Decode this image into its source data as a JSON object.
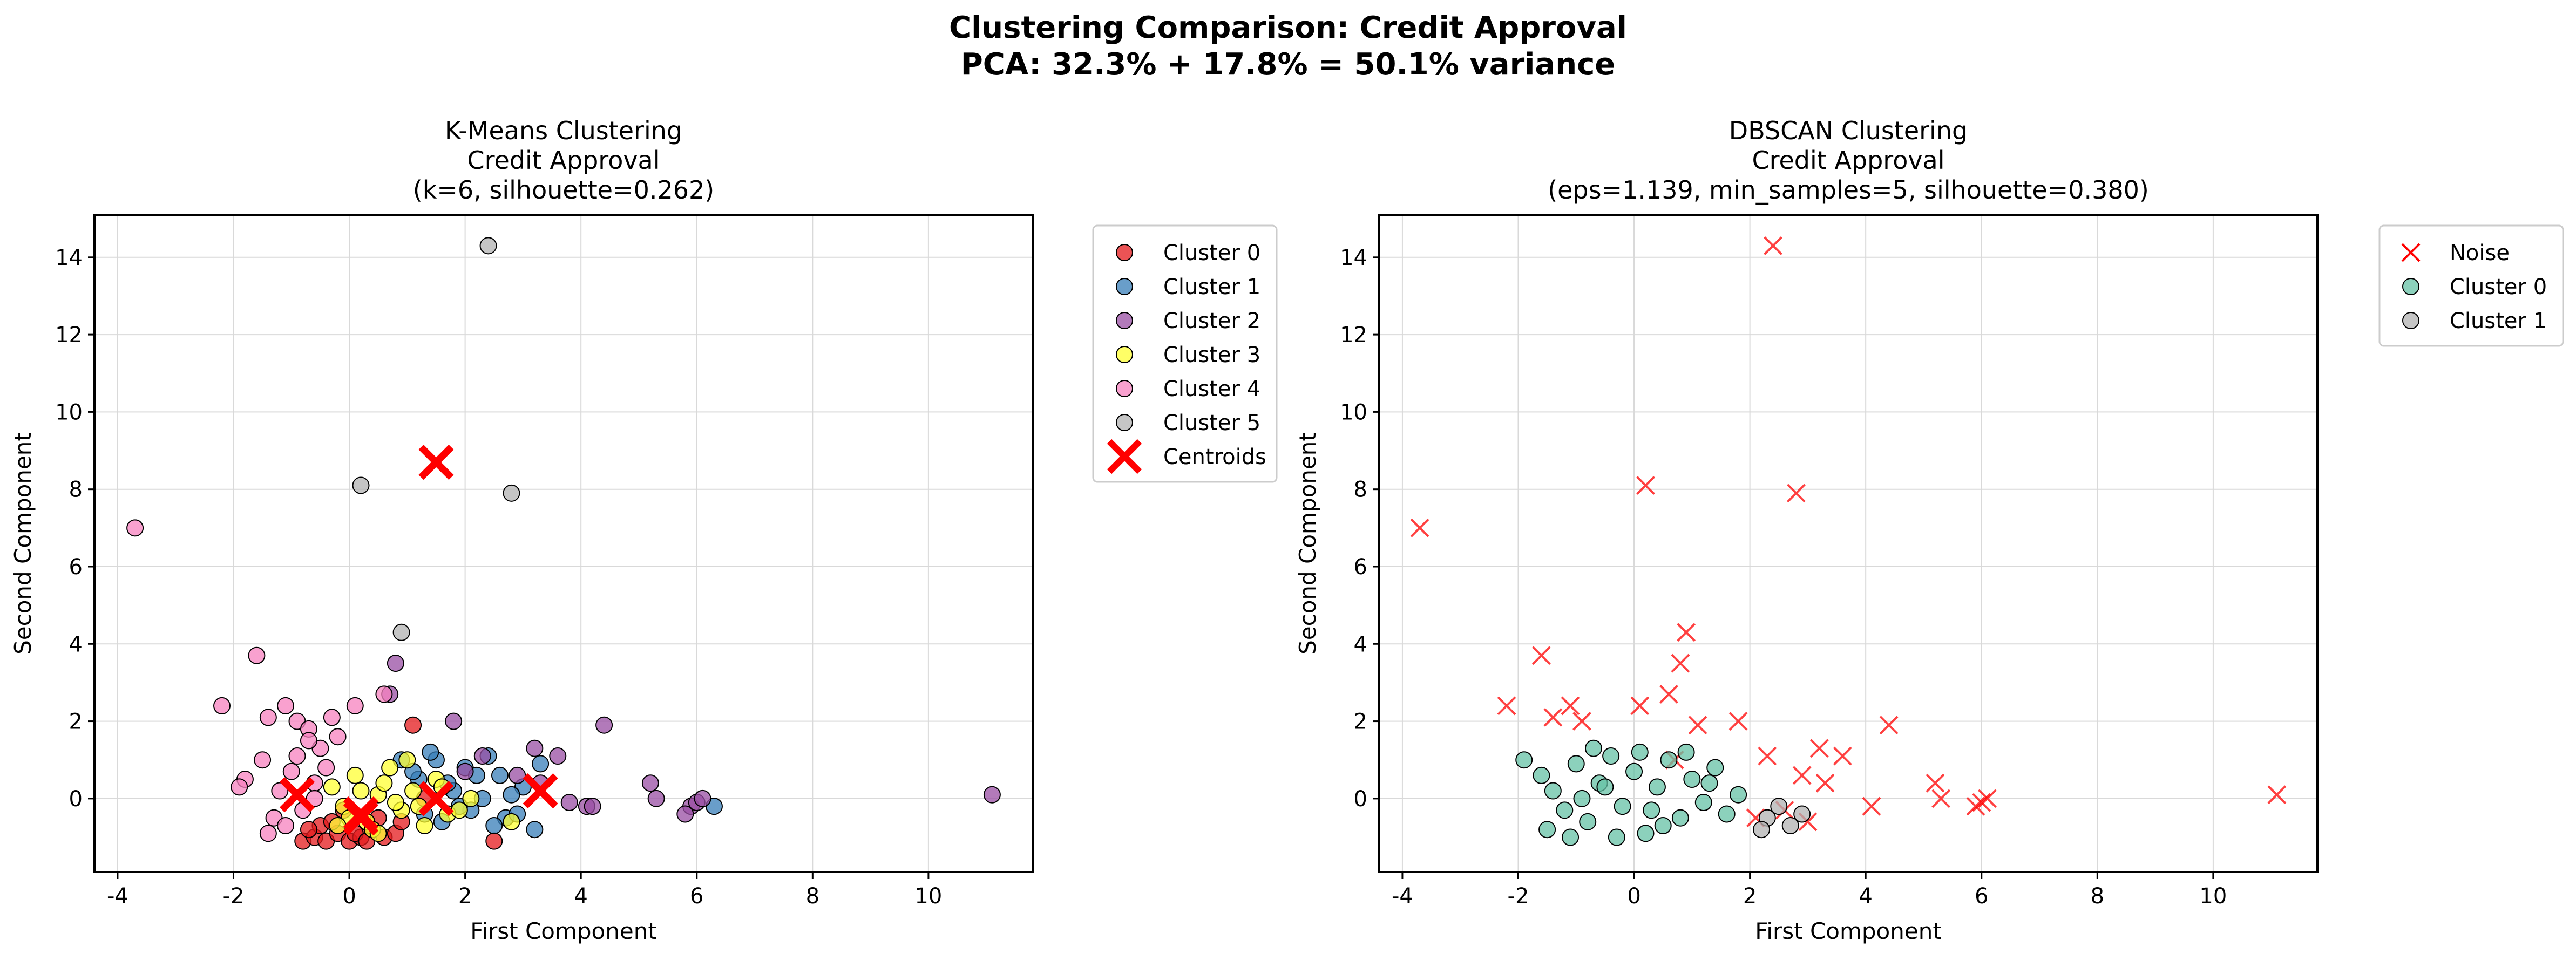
{
  "figure": {
    "title_line1": "Clustering Comparison: Credit Approval",
    "title_line2": "PCA: 32.3% + 17.8% = 50.1% variance"
  },
  "chart_data": [
    {
      "type": "scatter",
      "title": [
        "K-Means Clustering",
        "Credit Approval",
        "(k=6, silhouette=0.262)"
      ],
      "xlabel": "First Component",
      "ylabel": "Second Component",
      "xlim": [
        -4.4,
        11.8
      ],
      "ylim": [
        -1.9,
        15.1
      ],
      "xticks": [
        -4,
        -2,
        0,
        2,
        4,
        6,
        8,
        10
      ],
      "yticks": [
        0,
        2,
        4,
        6,
        8,
        10,
        12,
        14
      ],
      "grid": true,
      "legend_position": "outside-right",
      "series": [
        {
          "name": "Cluster 0",
          "marker": "circle",
          "color": "#e41a1c",
          "x": [
            -0.8,
            -0.6,
            -0.4,
            -0.2,
            0.0,
            0.2,
            0.4,
            -0.5,
            -0.3,
            0.1,
            0.3,
            0.6,
            -0.7,
            0.8,
            1.1,
            1.3,
            2.5,
            0.5,
            -0.1,
            0.9
          ],
          "y": [
            -1.1,
            -1.0,
            -1.1,
            -0.9,
            -1.1,
            -1.0,
            -0.8,
            -0.7,
            -0.6,
            -0.9,
            -1.1,
            -1.0,
            -0.8,
            -0.9,
            1.9,
            0.0,
            -1.1,
            -0.5,
            -0.3,
            -0.6
          ]
        },
        {
          "name": "Cluster 1",
          "marker": "circle",
          "color": "#377eb8",
          "x": [
            1.2,
            1.5,
            1.8,
            2.1,
            2.4,
            2.7,
            3.0,
            3.2,
            1.6,
            2.0,
            2.3,
            2.6,
            1.4,
            1.9,
            2.9,
            3.3,
            6.3,
            1.3,
            1.7,
            2.2,
            2.5,
            2.8,
            0.9,
            1.1
          ],
          "y": [
            0.5,
            1.0,
            0.2,
            -0.3,
            1.1,
            -0.5,
            0.3,
            -0.8,
            -0.6,
            0.8,
            0.0,
            0.6,
            1.2,
            -0.2,
            -0.4,
            0.9,
            -0.2,
            -0.4,
            0.4,
            0.6,
            -0.7,
            0.1,
            1.0,
            0.7
          ]
        },
        {
          "name": "Cluster 2",
          "marker": "circle",
          "color": "#984ea3",
          "x": [
            0.8,
            1.8,
            2.3,
            3.2,
            3.6,
            4.1,
            4.4,
            5.2,
            5.3,
            5.9,
            6.0,
            6.1,
            11.1,
            2.9,
            3.3,
            0.7,
            2.0,
            3.8,
            4.2,
            5.8
          ],
          "y": [
            3.5,
            2.0,
            1.1,
            1.3,
            1.1,
            -0.2,
            1.9,
            0.4,
            0.0,
            -0.2,
            -0.1,
            0.0,
            0.1,
            0.6,
            0.4,
            2.7,
            0.7,
            -0.1,
            -0.2,
            -0.4
          ]
        },
        {
          "name": "Cluster 3",
          "marker": "circle",
          "color": "#ffff33",
          "x": [
            -0.3,
            -0.1,
            0.1,
            0.3,
            0.5,
            0.7,
            0.9,
            1.1,
            1.3,
            1.5,
            1.7,
            0.0,
            0.2,
            0.4,
            0.6,
            0.8,
            1.0,
            1.2,
            2.1,
            2.8,
            -0.2,
            0.5,
            1.6,
            1.9
          ],
          "y": [
            0.3,
            -0.2,
            0.6,
            -0.6,
            0.1,
            0.8,
            -0.3,
            0.2,
            -0.7,
            0.5,
            -0.4,
            -0.5,
            0.2,
            -0.8,
            0.4,
            -0.1,
            1.0,
            -0.2,
            0.0,
            -0.6,
            -0.7,
            -0.9,
            0.3,
            -0.3
          ]
        },
        {
          "name": "Cluster 4",
          "marker": "circle",
          "color": "#f781bf",
          "x": [
            -3.7,
            -1.6,
            -2.2,
            -1.4,
            -1.1,
            -0.9,
            -0.7,
            -0.5,
            -0.3,
            -1.8,
            -1.5,
            -1.2,
            -1.0,
            -0.8,
            -0.6,
            -1.3,
            -0.9,
            -0.4,
            -0.7,
            0.1,
            0.6,
            -1.4,
            -1.1,
            -0.6,
            -0.2,
            -1.9
          ],
          "y": [
            7.0,
            3.7,
            2.4,
            2.1,
            2.4,
            2.0,
            1.8,
            1.3,
            2.1,
            0.5,
            1.0,
            0.2,
            0.7,
            -0.3,
            0.4,
            -0.5,
            1.1,
            0.8,
            1.5,
            2.4,
            2.7,
            -0.9,
            -0.7,
            0.0,
            1.6,
            0.3
          ]
        },
        {
          "name": "Cluster 5",
          "marker": "circle",
          "color": "#b2b2b2",
          "x": [
            2.4,
            0.2,
            2.8,
            0.9
          ],
          "y": [
            14.3,
            8.1,
            7.9,
            4.3
          ]
        },
        {
          "name": "Centroids",
          "marker": "x",
          "color": "#ff0000",
          "x": [
            -0.9,
            0.2,
            1.5,
            3.3,
            0.2,
            1.5
          ],
          "y": [
            0.1,
            -0.4,
            0.0,
            0.2,
            -0.5,
            8.7
          ]
        }
      ]
    },
    {
      "type": "scatter",
      "title": [
        "DBSCAN Clustering",
        "Credit Approval",
        "(eps=1.139, min_samples=5, silhouette=0.380)"
      ],
      "xlabel": "First Component",
      "ylabel": "Second Component",
      "xlim": [
        -4.4,
        11.8
      ],
      "ylim": [
        -1.9,
        15.1
      ],
      "xticks": [
        -4,
        -2,
        0,
        2,
        4,
        6,
        8,
        10
      ],
      "yticks": [
        0,
        2,
        4,
        6,
        8,
        10,
        12,
        14
      ],
      "grid": true,
      "legend_position": "outside-right",
      "series": [
        {
          "name": "Noise",
          "marker": "x",
          "color": "#ff0000",
          "x": [
            -3.7,
            -1.6,
            -2.2,
            -1.4,
            -1.1,
            -0.9,
            0.1,
            0.6,
            0.8,
            0.7,
            1.1,
            1.8,
            2.3,
            3.2,
            3.6,
            4.1,
            4.4,
            5.2,
            5.3,
            5.9,
            6.0,
            6.1,
            11.1,
            2.4,
            0.2,
            2.8,
            0.9,
            2.9,
            3.3,
            2.1,
            2.6,
            3.0
          ],
          "y": [
            7.0,
            3.7,
            2.4,
            2.1,
            2.4,
            2.0,
            2.4,
            2.7,
            3.5,
            1.0,
            1.9,
            2.0,
            1.1,
            1.3,
            1.1,
            -0.2,
            1.9,
            0.4,
            0.0,
            -0.2,
            -0.1,
            0.0,
            0.1,
            14.3,
            8.1,
            7.9,
            4.3,
            0.6,
            0.4,
            -0.5,
            -0.3,
            -0.6
          ]
        },
        {
          "name": "Cluster 0",
          "marker": "circle",
          "color": "#66c2a5",
          "x": [
            -1.9,
            -1.6,
            -1.4,
            -1.2,
            -1.0,
            -0.8,
            -0.6,
            -0.4,
            -0.2,
            0.0,
            0.2,
            0.4,
            0.6,
            0.8,
            1.0,
            1.2,
            1.4,
            1.6,
            1.8,
            -1.5,
            -1.1,
            -0.7,
            -0.3,
            0.1,
            0.5,
            0.9,
            1.3,
            -0.9,
            -0.5,
            0.3
          ],
          "y": [
            1.0,
            0.6,
            0.2,
            -0.3,
            0.9,
            -0.6,
            0.4,
            1.1,
            -0.2,
            0.7,
            -0.9,
            0.3,
            1.0,
            -0.5,
            0.5,
            -0.1,
            0.8,
            -0.4,
            0.1,
            -0.8,
            -1.0,
            1.3,
            -1.0,
            1.2,
            -0.7,
            1.2,
            0.4,
            0.0,
            0.3,
            -0.3
          ]
        },
        {
          "name": "Cluster 1",
          "marker": "circle",
          "color": "#b2b2b2",
          "x": [
            2.3,
            2.5,
            2.7,
            2.9,
            2.2
          ],
          "y": [
            -0.5,
            -0.2,
            -0.7,
            -0.4,
            -0.8
          ]
        }
      ]
    }
  ]
}
